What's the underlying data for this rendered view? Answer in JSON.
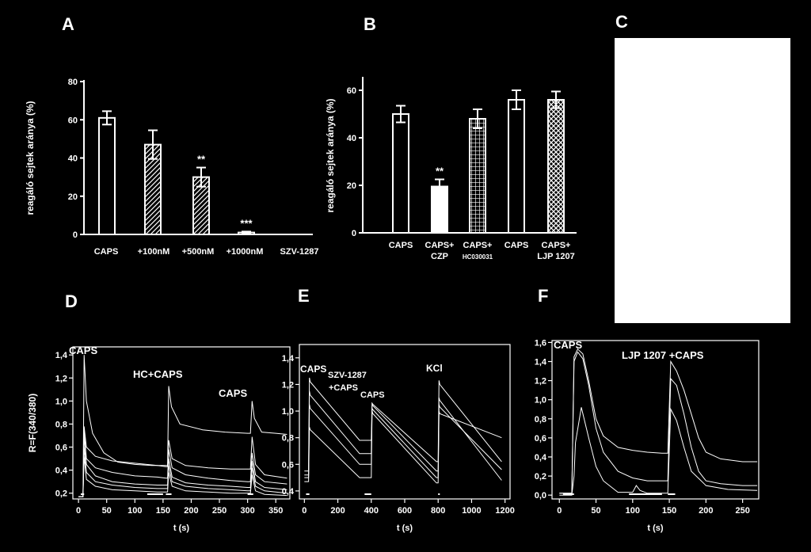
{
  "chart_data": [
    {
      "id": "A",
      "type": "bar",
      "panel_label": "A",
      "ylabel": "reagáló sejtek aránya (%)",
      "ylim": [
        0,
        80
      ],
      "yticks": [
        "0",
        "20",
        "40",
        "60",
        "80"
      ],
      "categories": [
        "CAPS",
        "+100nM",
        "+500nM",
        "+1000nM"
      ],
      "extra_label": "SZV-1287",
      "values": [
        61,
        47,
        30,
        1
      ],
      "errors": [
        3.5,
        7.5,
        5,
        0.5
      ],
      "patterns": [
        "open",
        "hatch",
        "hatch",
        "open"
      ],
      "significance": [
        "",
        "",
        "**",
        "***"
      ]
    },
    {
      "id": "B",
      "type": "bar",
      "panel_label": "B",
      "ylabel": "reagáló sejtek aránya (%)",
      "ylim": [
        0,
        65
      ],
      "yticks": [
        "0",
        "20",
        "40",
        "60"
      ],
      "categories": [
        [
          "CAPS"
        ],
        [
          "CAPS+",
          "CZP"
        ],
        [
          "CAPS+",
          "HC030031"
        ],
        [
          "CAPS"
        ],
        [
          "CAPS+",
          "LJP 1207"
        ]
      ],
      "values": [
        50,
        19.5,
        48,
        56,
        56
      ],
      "errors": [
        3.5,
        3,
        4,
        4,
        3.5
      ],
      "patterns": [
        "open",
        "solid",
        "grid",
        "open",
        "cross"
      ],
      "significance": [
        "",
        "**",
        "",
        "",
        ""
      ]
    },
    {
      "id": "C",
      "type": "image",
      "panel_label": "C"
    },
    {
      "id": "D",
      "type": "line",
      "panel_label": "D",
      "ylabel": "R=F(340/380)",
      "xlabel": "t (s)",
      "xlim": [
        -10,
        375
      ],
      "ylim": [
        0.15,
        1.47
      ],
      "xticks": [
        "0",
        "50",
        "100",
        "150",
        "200",
        "250",
        "300",
        "350"
      ],
      "yticks": [
        "0,2",
        "0,4",
        "0,6",
        "0,8",
        "1,0",
        "1,2",
        "1,4"
      ],
      "annotations": [
        "CAPS",
        "HC+CAPS",
        "CAPS"
      ],
      "series": [
        {
          "x": [
            0,
            8,
            10,
            14,
            25,
            45,
            70,
            100,
            130,
            155,
            158,
            160,
            165,
            180,
            220,
            260,
            300,
            305,
            308,
            312,
            325,
            350,
            370
          ],
          "y": [
            0.17,
            0.17,
            1.4,
            1.0,
            0.72,
            0.55,
            0.47,
            0.45,
            0.44,
            0.44,
            0.44,
            1.13,
            0.95,
            0.8,
            0.75,
            0.73,
            0.72,
            0.72,
            1.0,
            0.85,
            0.73,
            0.72,
            0.71
          ]
        },
        {
          "x": [
            0,
            8,
            10,
            14,
            30,
            60,
            100,
            140,
            155,
            158,
            160,
            166,
            190,
            230,
            270,
            300,
            305,
            308,
            314,
            330,
            370
          ],
          "y": [
            0.17,
            0.17,
            0.78,
            0.6,
            0.52,
            0.48,
            0.46,
            0.44,
            0.43,
            0.43,
            0.66,
            0.5,
            0.44,
            0.42,
            0.41,
            0.41,
            0.41,
            0.69,
            0.45,
            0.36,
            0.33
          ]
        },
        {
          "x": [
            0,
            8,
            10,
            14,
            30,
            60,
            100,
            140,
            155,
            158,
            160,
            166,
            190,
            230,
            270,
            300,
            305,
            308,
            314,
            330,
            370
          ],
          "y": [
            0.17,
            0.17,
            0.75,
            0.5,
            0.42,
            0.38,
            0.35,
            0.34,
            0.33,
            0.33,
            0.58,
            0.42,
            0.36,
            0.33,
            0.31,
            0.3,
            0.3,
            0.55,
            0.36,
            0.3,
            0.28
          ]
        },
        {
          "x": [
            0,
            8,
            10,
            14,
            30,
            60,
            100,
            140,
            155,
            158,
            160,
            166,
            190,
            230,
            270,
            300,
            305,
            308,
            314,
            330,
            370
          ],
          "y": [
            0.17,
            0.17,
            0.7,
            0.45,
            0.35,
            0.3,
            0.28,
            0.27,
            0.27,
            0.27,
            0.5,
            0.34,
            0.29,
            0.27,
            0.26,
            0.25,
            0.25,
            0.48,
            0.3,
            0.25,
            0.23
          ]
        },
        {
          "x": [
            0,
            8,
            10,
            14,
            30,
            60,
            100,
            140,
            155,
            158,
            160,
            166,
            190,
            230,
            270,
            300,
            305,
            308,
            314,
            330,
            370
          ],
          "y": [
            0.17,
            0.17,
            0.6,
            0.38,
            0.3,
            0.27,
            0.25,
            0.24,
            0.24,
            0.24,
            0.44,
            0.3,
            0.26,
            0.24,
            0.23,
            0.22,
            0.22,
            0.42,
            0.26,
            0.22,
            0.2
          ]
        },
        {
          "x": [
            0,
            8,
            10,
            14,
            30,
            60,
            100,
            140,
            155,
            158,
            160,
            166,
            190,
            230,
            270,
            300,
            305,
            308,
            314,
            330,
            370
          ],
          "y": [
            0.17,
            0.17,
            0.52,
            0.32,
            0.26,
            0.23,
            0.22,
            0.21,
            0.21,
            0.21,
            0.38,
            0.26,
            0.22,
            0.21,
            0.2,
            0.2,
            0.2,
            0.36,
            0.22,
            0.19,
            0.18
          ]
        }
      ]
    },
    {
      "id": "E",
      "type": "line",
      "panel_label": "E",
      "xlabel": "t (s)",
      "xlim": [
        -30,
        1230
      ],
      "ylim": [
        0.34,
        1.5
      ],
      "xticks": [
        "0",
        "200",
        "400",
        "600",
        "800",
        "1000",
        "1200"
      ],
      "yticks": [
        "0,4",
        "0,6",
        "0,8",
        "1,0",
        "1,2",
        "1,4"
      ],
      "annotations": [
        "CAPS",
        "SZV-1287",
        "+CAPS",
        "CAPS",
        "KCl"
      ],
      "series": [
        {
          "x": [
            0,
            25,
            30,
            35,
            330,
            395,
            400,
            405,
            410,
            790,
            800,
            805,
            810,
            1180
          ],
          "y": [
            0.55,
            0.55,
            1.25,
            1.22,
            0.78,
            0.78,
            0.78,
            1.06,
            1.05,
            0.62,
            0.62,
            1.23,
            1.2,
            0.62
          ]
        },
        {
          "x": [
            0,
            25,
            30,
            35,
            330,
            395,
            400,
            405,
            410,
            790,
            800,
            805,
            810,
            1180
          ],
          "y": [
            0.52,
            0.52,
            1.15,
            1.12,
            0.68,
            0.68,
            0.68,
            1.05,
            1.04,
            0.55,
            0.55,
            1.1,
            1.08,
            0.48
          ]
        },
        {
          "x": [
            0,
            25,
            30,
            35,
            330,
            395,
            400,
            405,
            410,
            790,
            800,
            805,
            810,
            1180
          ],
          "y": [
            0.5,
            0.5,
            1.05,
            1.02,
            0.6,
            0.6,
            0.6,
            1.02,
            1.01,
            0.5,
            0.5,
            1.05,
            1.03,
            0.56
          ]
        },
        {
          "x": [
            0,
            25,
            30,
            35,
            330,
            395,
            400,
            405,
            410,
            790,
            800,
            805,
            810,
            1180
          ],
          "y": [
            0.47,
            0.47,
            0.88,
            0.86,
            0.5,
            0.5,
            0.5,
            1.0,
            0.98,
            0.46,
            0.46,
            1.0,
            0.98,
            0.8
          ]
        }
      ]
    },
    {
      "id": "F",
      "type": "line",
      "panel_label": "F",
      "xlabel": "t (s)",
      "xlim": [
        -10,
        272
      ],
      "ylim": [
        -0.04,
        1.62
      ],
      "xticks": [
        "0",
        "50",
        "100",
        "150",
        "200",
        "250"
      ],
      "yticks": [
        "0,0",
        "0,2",
        "0,4",
        "0,6",
        "0,8",
        "1,0",
        "1,2",
        "1,4",
        "1,6"
      ],
      "annotations": [
        "CAPS",
        "LJP 1207 +CAPS"
      ],
      "series": [
        {
          "x": [
            0,
            17,
            20,
            25,
            32,
            40,
            50,
            60,
            80,
            100,
            120,
            140,
            148,
            152,
            160,
            170,
            180,
            190,
            200,
            220,
            250,
            270
          ],
          "y": [
            0.02,
            0.02,
            1.45,
            1.53,
            1.48,
            1.2,
            0.8,
            0.62,
            0.5,
            0.47,
            0.45,
            0.44,
            0.44,
            1.4,
            1.3,
            1.1,
            0.85,
            0.6,
            0.45,
            0.38,
            0.35,
            0.35
          ]
        },
        {
          "x": [
            0,
            17,
            20,
            25,
            32,
            40,
            50,
            60,
            80,
            100,
            120,
            140,
            148,
            152,
            160,
            170,
            180,
            190,
            200,
            220,
            250,
            270
          ],
          "y": [
            0.02,
            0.02,
            1.4,
            1.5,
            1.43,
            1.15,
            0.7,
            0.45,
            0.25,
            0.18,
            0.15,
            0.15,
            0.15,
            1.22,
            1.15,
            0.85,
            0.5,
            0.25,
            0.15,
            0.12,
            0.1,
            0.1
          ]
        },
        {
          "x": [
            0,
            17,
            20,
            22,
            30,
            40,
            50,
            60,
            80,
            100,
            105,
            110,
            120,
            140,
            148,
            152,
            160,
            170,
            180,
            200,
            230,
            270
          ],
          "y": [
            0.0,
            0.0,
            0.2,
            0.55,
            0.92,
            0.6,
            0.3,
            0.15,
            0.03,
            0.03,
            0.1,
            0.05,
            0.02,
            0.02,
            0.02,
            0.9,
            0.78,
            0.5,
            0.25,
            0.1,
            0.06,
            0.05
          ]
        }
      ]
    }
  ]
}
